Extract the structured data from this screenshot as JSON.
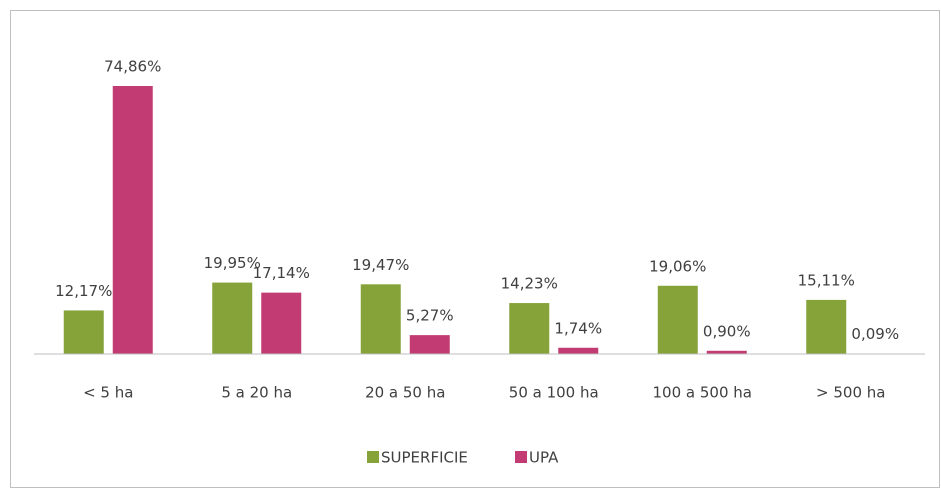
{
  "chart_data": {
    "type": "bar",
    "categories": [
      "< 5 ha",
      "5 a 20 ha",
      "20 a 50 ha",
      "50 a 100 ha",
      "100 a 500 ha",
      "> 500 ha"
    ],
    "series": [
      {
        "name": "SUPERFICIE",
        "color": "#86a33a",
        "values": [
          12.17,
          19.95,
          19.47,
          14.23,
          19.06,
          15.11
        ],
        "value_labels": [
          "12,17%",
          "19,95%",
          "19,47%",
          "14,23%",
          "19,06%",
          "15,11%"
        ]
      },
      {
        "name": "UPA",
        "color": "#c23b72",
        "values": [
          74.86,
          17.14,
          5.27,
          1.74,
          0.9,
          0.09
        ],
        "value_labels": [
          "74,86%",
          "17,14%",
          "5,27%",
          "1,74%",
          "0,90%",
          "0,09%"
        ]
      }
    ],
    "legend": "bottom"
  }
}
